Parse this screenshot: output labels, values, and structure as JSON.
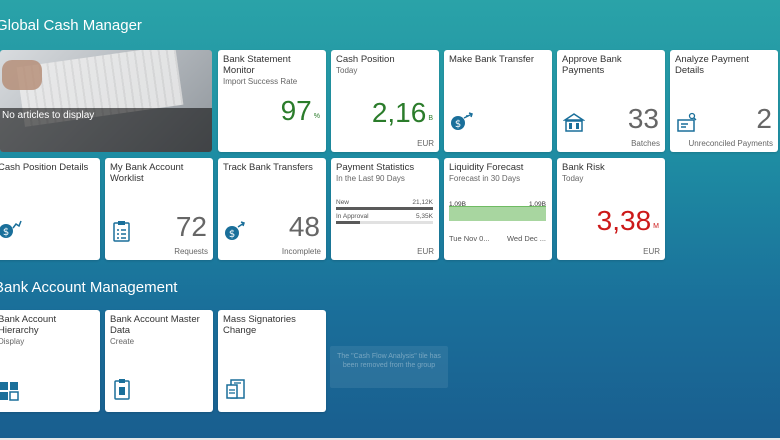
{
  "groups": {
    "gcm_title": "Global Cash Manager",
    "bam_title": "Bank Account Management"
  },
  "news": {
    "text": "No articles to display"
  },
  "tiles": {
    "bank_statement": {
      "title": "Bank Statement Monitor",
      "subtitle": "Import Success Rate",
      "value": "97",
      "scale": "%"
    },
    "cash_position": {
      "title": "Cash Position",
      "subtitle": "Today",
      "value": "2,16",
      "scale": "B",
      "footer": "EUR"
    },
    "bank_transfer": {
      "title": "Make Bank Transfer"
    },
    "approve_payments": {
      "title": "Approve Bank Payments",
      "value": "33",
      "footer": "Batches"
    },
    "analyze_payments": {
      "title": "Analyze Payment Details",
      "value": "2",
      "footer": "Unreconciled Payments"
    },
    "cash_position_details": {
      "title": "Cash Position Details"
    },
    "my_worklist": {
      "title": "My Bank Account Worklist",
      "value": "72",
      "footer": "Requests"
    },
    "track_transfers": {
      "title": "Track Bank Transfers",
      "value": "48",
      "footer": "Incomplete"
    },
    "payment_statistics": {
      "title": "Payment Statistics",
      "subtitle": "In the Last 90 Days",
      "bars": [
        {
          "label": "New",
          "value": "21,12K",
          "fraction": 1.0
        },
        {
          "label": "In Approval",
          "value": "5,35K",
          "fraction": 0.25
        }
      ],
      "footer": "EUR"
    },
    "liquidity_forecast": {
      "title": "Liquidity Forecast",
      "subtitle": "Forecast in 30 Days",
      "start_value": "1,09B",
      "end_value": "1,09B",
      "date_start": "Tue Nov 0...",
      "date_end": "Wed Dec ..."
    },
    "bank_risk": {
      "title": "Bank Risk",
      "subtitle": "Today",
      "value": "3,38",
      "scale": "M",
      "footer": "EUR"
    },
    "hierarchy": {
      "title": "Bank Account Hierarchy",
      "subtitle": "Display"
    },
    "master_data": {
      "title": "Bank Account Master Data",
      "subtitle": "Create"
    },
    "mass_signatories": {
      "title": "Mass Signatories Change"
    }
  },
  "tooltip": "The \"Cash Flow Analysis\" tile has been removed from the group",
  "colors": {
    "positive": "#2b7c2b",
    "negative": "#cc1919",
    "icon": "#1a6f9a"
  }
}
